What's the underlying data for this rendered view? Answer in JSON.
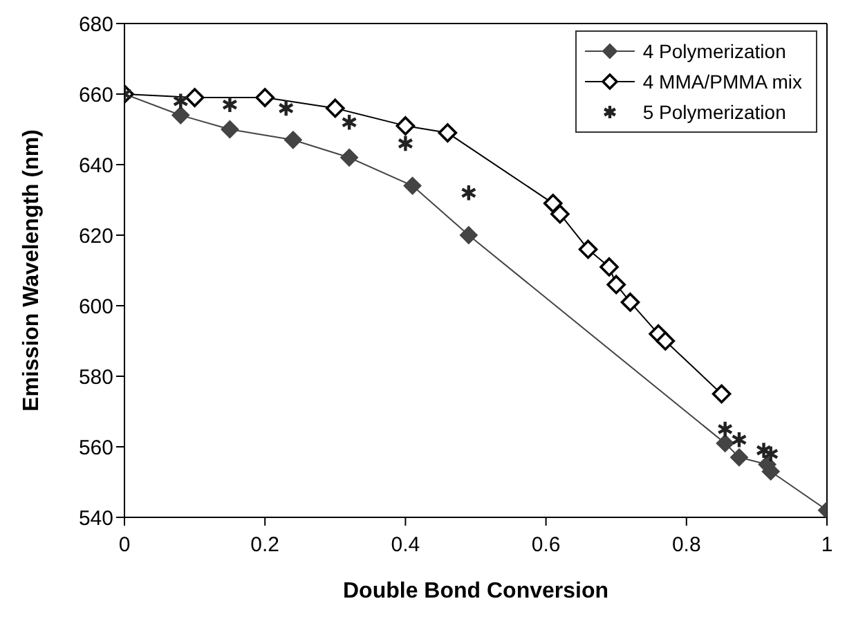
{
  "chart_data": {
    "type": "line",
    "xlabel": "Double Bond Conversion",
    "ylabel": "Emission Wavelength (nm)",
    "xlim": [
      0,
      1
    ],
    "xticks": [
      0,
      0.2,
      0.4,
      0.6,
      0.8,
      1
    ],
    "ylim": [
      540,
      680
    ],
    "yticks": [
      540,
      560,
      580,
      600,
      620,
      640,
      660,
      680
    ],
    "legend": "top right",
    "line_style": "solid",
    "series": [
      {
        "name": "4 Polymerization",
        "color": "#444444",
        "marker": "diamond",
        "x": [
          0,
          0.08,
          0.15,
          0.24,
          0.32,
          0.41,
          0.49,
          0.855,
          0.875,
          0.915,
          0.92,
          1
        ],
        "values": [
          660,
          654,
          650,
          647,
          642,
          634,
          620,
          561,
          557,
          555,
          553,
          542
        ]
      },
      {
        "name": "4 MMA/PMMA mix",
        "color": "#000000",
        "marker": "diamond",
        "x": [
          0,
          0.1,
          0.2,
          0.3,
          0.4,
          0.46,
          0.61,
          0.62,
          0.66,
          0.69,
          0.7,
          0.72,
          0.76,
          0.77,
          0.85
        ],
        "values": [
          660,
          659,
          659,
          656,
          651,
          649,
          629,
          626,
          616,
          611,
          606,
          601,
          592,
          590,
          575
        ]
      },
      {
        "name": "5 Polymerization",
        "type": "scatter",
        "color": "#222222",
        "marker": "cross",
        "x": [
          0,
          0.08,
          0.15,
          0.23,
          0.32,
          0.4,
          0.49,
          0.855,
          0.875,
          0.91,
          0.92
        ],
        "values": [
          660,
          658,
          657,
          656,
          652,
          646,
          632,
          565,
          562,
          559,
          558
        ]
      }
    ]
  }
}
